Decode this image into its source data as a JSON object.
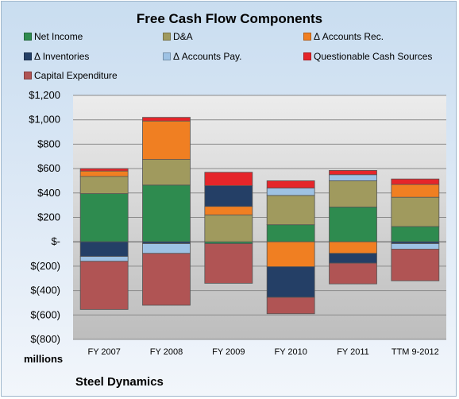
{
  "chart_data": {
    "type": "bar",
    "stacked": true,
    "title": "Free Cash Flow Components",
    "units_label": "millions",
    "footer": "Steel Dynamics",
    "categories": [
      "FY 2007",
      "FY 2008",
      "FY 2009",
      "FY 2010",
      "FY 2011",
      "TTM 9-2012"
    ],
    "ylim": [
      -800,
      1200
    ],
    "yticks": [
      1200,
      1000,
      800,
      600,
      400,
      200,
      0,
      -200,
      -400,
      -600,
      -800
    ],
    "ytick_labels": [
      "$1,200",
      "$1,000",
      "$800",
      "$600",
      "$400",
      "$200",
      "$-",
      "$(200)",
      "$(400)",
      "$(600)",
      "$(800)"
    ],
    "grid": true,
    "legend_position": "top",
    "series": [
      {
        "name": "Net Income",
        "color": "#2e8b4f",
        "values": [
          395,
          465,
          -15,
          140,
          285,
          125
        ]
      },
      {
        "name": "D&A",
        "color": "#a09a5e",
        "values": [
          140,
          210,
          220,
          240,
          215,
          240
        ]
      },
      {
        "name": "Δ Accounts Rec.",
        "color": "#f07f22",
        "values": [
          45,
          315,
          70,
          -205,
          -95,
          105
        ]
      },
      {
        "name": "Δ Inventories",
        "color": "#243f66",
        "values": [
          -120,
          -15,
          170,
          -250,
          -80,
          -15
        ]
      },
      {
        "name": "Δ Accounts Pay.",
        "color": "#9ec2e4",
        "values": [
          -40,
          -80,
          0,
          60,
          50,
          -45
        ]
      },
      {
        "name": "Questionable Cash Sources",
        "color": "#e5252a",
        "values": [
          20,
          30,
          110,
          60,
          35,
          45
        ]
      },
      {
        "name": "Capital Expenditure",
        "color": "#b05454",
        "values": [
          -395,
          -425,
          -325,
          -135,
          -170,
          -260
        ]
      }
    ]
  }
}
